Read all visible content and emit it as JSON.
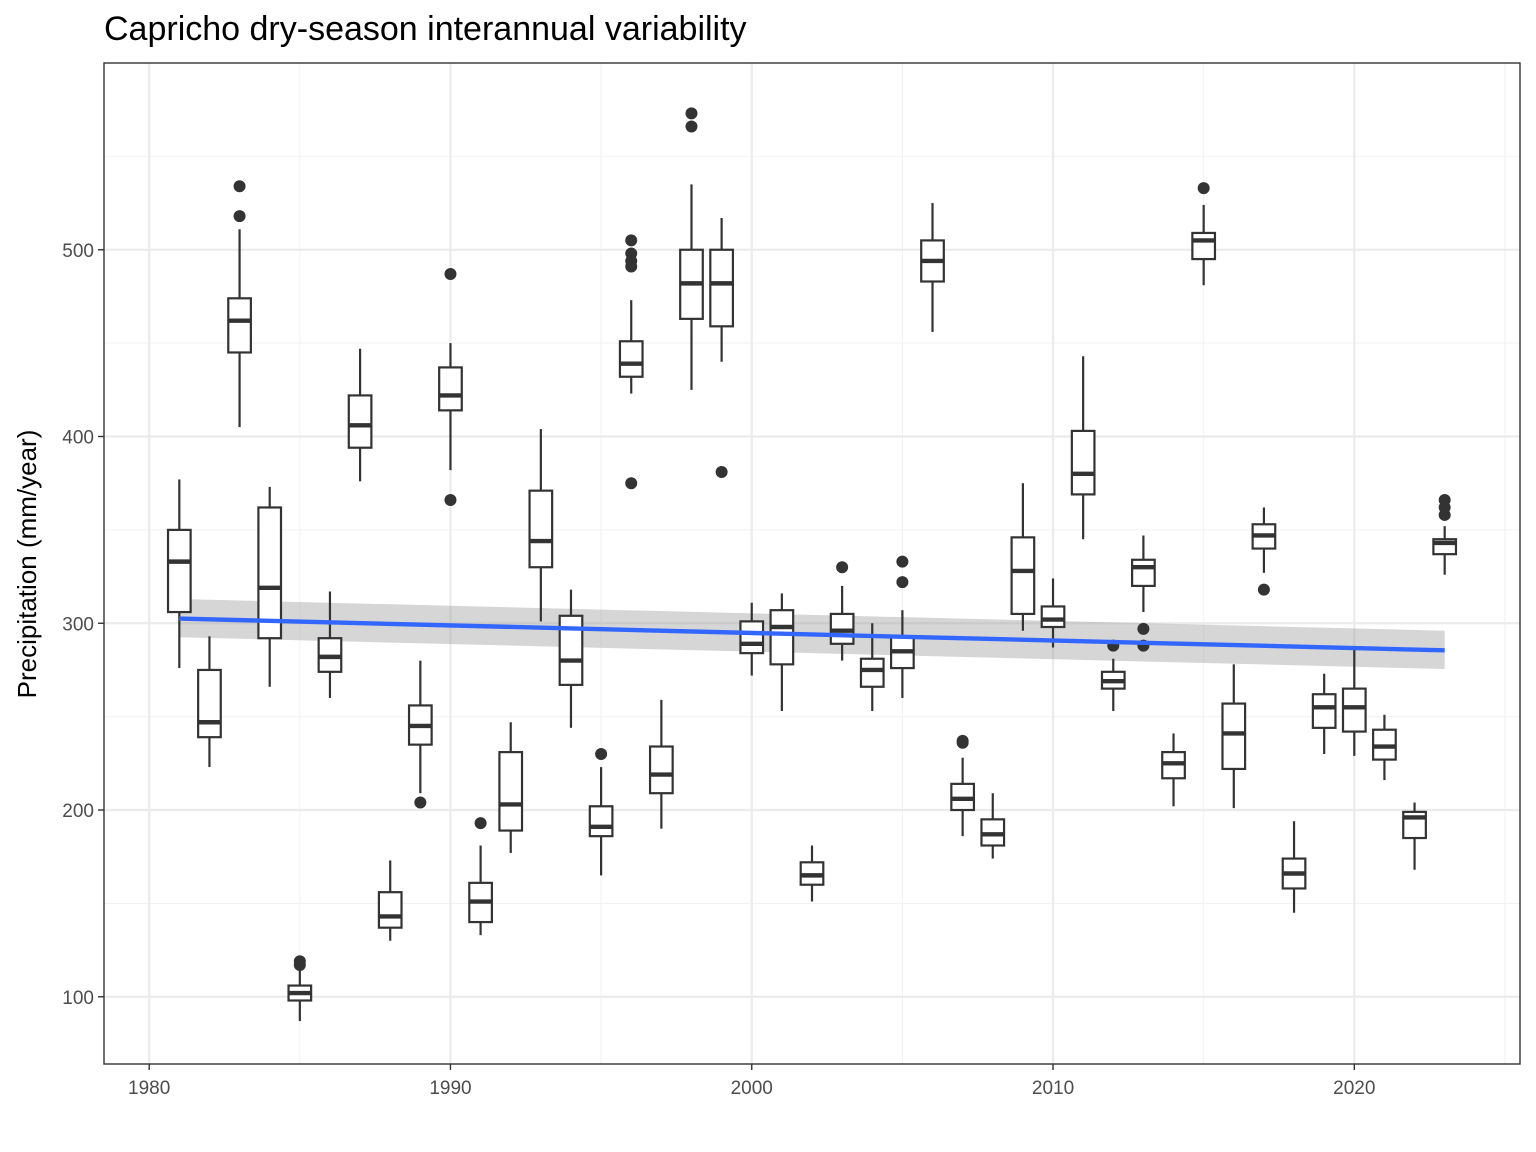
{
  "chart_data": {
    "type": "boxplot",
    "title": "Capricho dry-season interannual variability",
    "xlabel": "",
    "ylabel": "Precipitation (mm/year)",
    "xlim": [
      1978.5,
      2025.5
    ],
    "ylim": [
      64,
      600
    ],
    "x_ticks": [
      1980,
      1990,
      2000,
      2010,
      2020
    ],
    "y_ticks": [
      100,
      200,
      300,
      400,
      500
    ],
    "grid": true,
    "legend": "none",
    "boxes": [
      {
        "year": 1981,
        "min": 276,
        "q1": 306,
        "median": 333,
        "q3": 350,
        "max": 377,
        "outliers": []
      },
      {
        "year": 1982,
        "min": 223,
        "q1": 239,
        "median": 247,
        "q3": 275,
        "max": 293,
        "outliers": []
      },
      {
        "year": 1983,
        "min": 405,
        "q1": 445,
        "median": 462,
        "q3": 474,
        "max": 511,
        "outliers": [
          518,
          534
        ]
      },
      {
        "year": 1984,
        "min": 266,
        "q1": 292,
        "median": 319,
        "q3": 362,
        "max": 373,
        "outliers": []
      },
      {
        "year": 1985,
        "min": 87,
        "q1": 98,
        "median": 102,
        "q3": 106,
        "max": 114,
        "outliers": [
          117,
          119
        ]
      },
      {
        "year": 1986,
        "min": 260,
        "q1": 274,
        "median": 282,
        "q3": 292,
        "max": 317,
        "outliers": []
      },
      {
        "year": 1987,
        "min": 376,
        "q1": 394,
        "median": 406,
        "q3": 422,
        "max": 447,
        "outliers": []
      },
      {
        "year": 1988,
        "min": 130,
        "q1": 137,
        "median": 143,
        "q3": 156,
        "max": 173,
        "outliers": []
      },
      {
        "year": 1989,
        "min": 209,
        "q1": 235,
        "median": 245,
        "q3": 256,
        "max": 280,
        "outliers": [
          204
        ]
      },
      {
        "year": 1990,
        "min": 382,
        "q1": 414,
        "median": 422,
        "q3": 437,
        "max": 450,
        "outliers": [
          487,
          366
        ]
      },
      {
        "year": 1991,
        "min": 133,
        "q1": 140,
        "median": 151,
        "q3": 161,
        "max": 181,
        "outliers": [
          193
        ]
      },
      {
        "year": 1992,
        "min": 177,
        "q1": 189,
        "median": 203,
        "q3": 231,
        "max": 247,
        "outliers": []
      },
      {
        "year": 1993,
        "min": 301,
        "q1": 330,
        "median": 344,
        "q3": 371,
        "max": 404,
        "outliers": []
      },
      {
        "year": 1994,
        "min": 244,
        "q1": 267,
        "median": 280,
        "q3": 304,
        "max": 318,
        "outliers": []
      },
      {
        "year": 1995,
        "min": 165,
        "q1": 186,
        "median": 191,
        "q3": 202,
        "max": 223,
        "outliers": [
          230
        ]
      },
      {
        "year": 1996,
        "min": 423,
        "q1": 432,
        "median": 439,
        "q3": 451,
        "max": 473,
        "outliers": [
          505,
          498,
          494,
          491,
          375
        ]
      },
      {
        "year": 1997,
        "min": 190,
        "q1": 209,
        "median": 219,
        "q3": 234,
        "max": 259,
        "outliers": []
      },
      {
        "year": 1998,
        "min": 425,
        "q1": 463,
        "median": 482,
        "q3": 500,
        "max": 535,
        "outliers": [
          573,
          566
        ]
      },
      {
        "year": 1999,
        "min": 440,
        "q1": 459,
        "median": 482,
        "q3": 500,
        "max": 517,
        "outliers": [
          381
        ]
      },
      {
        "year": 2000,
        "min": 272,
        "q1": 284,
        "median": 289,
        "q3": 301,
        "max": 311,
        "outliers": []
      },
      {
        "year": 2001,
        "min": 253,
        "q1": 278,
        "median": 298,
        "q3": 307,
        "max": 316,
        "outliers": []
      },
      {
        "year": 2002,
        "min": 151,
        "q1": 160,
        "median": 165,
        "q3": 172,
        "max": 181,
        "outliers": []
      },
      {
        "year": 2003,
        "min": 280,
        "q1": 289,
        "median": 296,
        "q3": 305,
        "max": 320,
        "outliers": [
          330
        ]
      },
      {
        "year": 2004,
        "min": 253,
        "q1": 266,
        "median": 275,
        "q3": 281,
        "max": 300,
        "outliers": []
      },
      {
        "year": 2005,
        "min": 260,
        "q1": 276,
        "median": 285,
        "q3": 293,
        "max": 307,
        "outliers": [
          333,
          322
        ]
      },
      {
        "year": 2006,
        "min": 456,
        "q1": 483,
        "median": 494,
        "q3": 505,
        "max": 525,
        "outliers": []
      },
      {
        "year": 2007,
        "min": 186,
        "q1": 200,
        "median": 206,
        "q3": 214,
        "max": 228,
        "outliers": [
          236,
          237
        ]
      },
      {
        "year": 2008,
        "min": 174,
        "q1": 181,
        "median": 187,
        "q3": 195,
        "max": 209,
        "outliers": []
      },
      {
        "year": 2009,
        "min": 296,
        "q1": 305,
        "median": 328,
        "q3": 346,
        "max": 375,
        "outliers": []
      },
      {
        "year": 2010,
        "min": 287,
        "q1": 298,
        "median": 302,
        "q3": 309,
        "max": 324,
        "outliers": []
      },
      {
        "year": 2011,
        "min": 345,
        "q1": 369,
        "median": 380,
        "q3": 403,
        "max": 443,
        "outliers": []
      },
      {
        "year": 2012,
        "min": 253,
        "q1": 265,
        "median": 269,
        "q3": 274,
        "max": 281,
        "outliers": [
          288
        ]
      },
      {
        "year": 2013,
        "min": 306,
        "q1": 320,
        "median": 330,
        "q3": 334,
        "max": 347,
        "outliers": [
          297,
          288
        ]
      },
      {
        "year": 2014,
        "min": 202,
        "q1": 217,
        "median": 225,
        "q3": 231,
        "max": 241,
        "outliers": []
      },
      {
        "year": 2015,
        "min": 481,
        "q1": 495,
        "median": 505,
        "q3": 509,
        "max": 524,
        "outliers": [
          533
        ]
      },
      {
        "year": 2016,
        "min": 201,
        "q1": 222,
        "median": 241,
        "q3": 257,
        "max": 278,
        "outliers": []
      },
      {
        "year": 2017,
        "min": 327,
        "q1": 340,
        "median": 347,
        "q3": 353,
        "max": 362,
        "outliers": [
          318
        ]
      },
      {
        "year": 2018,
        "min": 145,
        "q1": 158,
        "median": 166,
        "q3": 174,
        "max": 194,
        "outliers": []
      },
      {
        "year": 2019,
        "min": 230,
        "q1": 244,
        "median": 255,
        "q3": 262,
        "max": 273,
        "outliers": []
      },
      {
        "year": 2020,
        "min": 229,
        "q1": 242,
        "median": 255,
        "q3": 265,
        "max": 286,
        "outliers": []
      },
      {
        "year": 2021,
        "min": 216,
        "q1": 227,
        "median": 234,
        "q3": 243,
        "max": 251,
        "outliers": []
      },
      {
        "year": 2022,
        "min": 168,
        "q1": 185,
        "median": 196,
        "q3": 199,
        "max": 204,
        "outliers": []
      },
      {
        "year": 2023,
        "min": 326,
        "q1": 337,
        "median": 343,
        "q3": 345,
        "max": 352,
        "outliers": [
          358,
          362,
          366
        ]
      }
    ],
    "trend": {
      "x": [
        1981,
        2023
      ],
      "y": [
        302.5,
        285.5
      ],
      "ci_low": [
        292.5,
        275.5
      ],
      "ci_high": [
        313,
        296
      ],
      "color": "#3366ff",
      "ribbon_color": "#999999"
    }
  }
}
